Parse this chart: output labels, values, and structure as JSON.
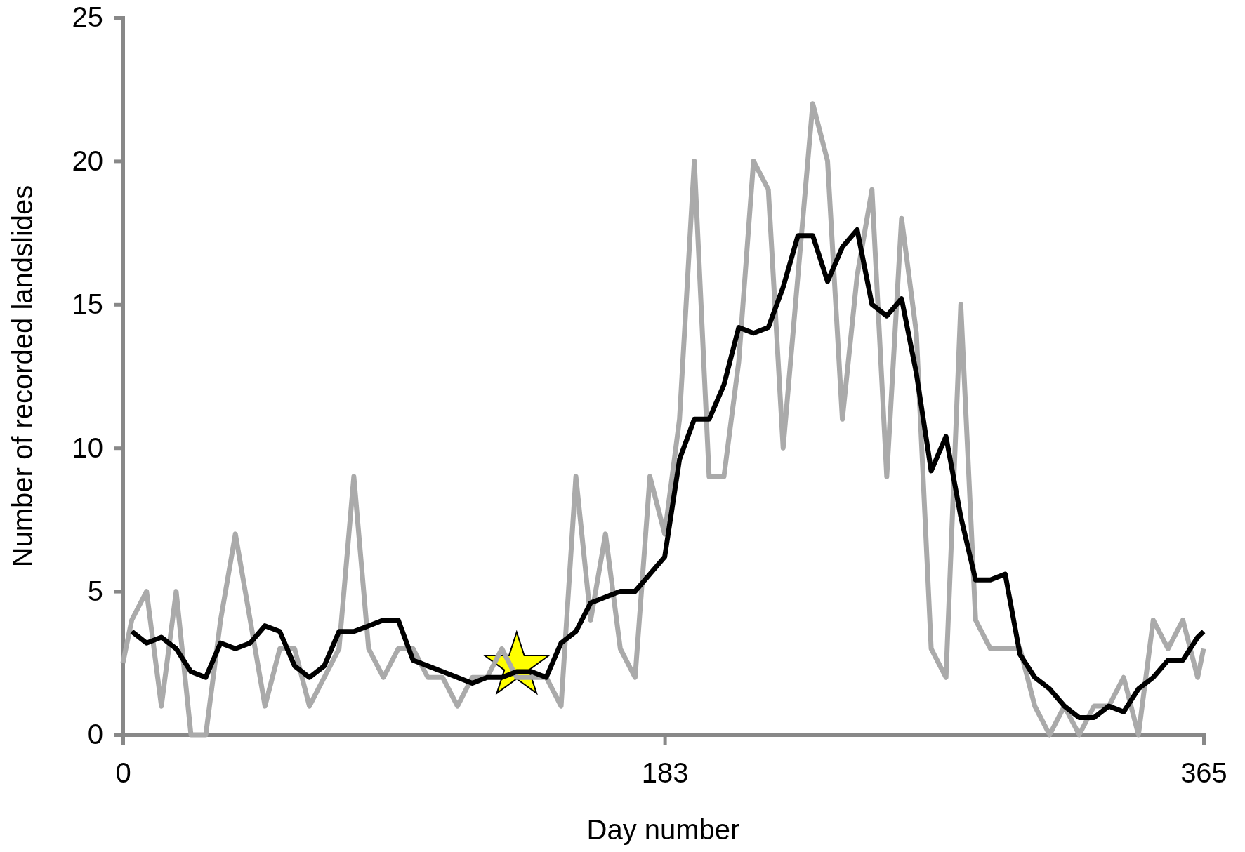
{
  "chart_data": {
    "type": "line",
    "xlabel": "Day number",
    "ylabel": "Number of recorded landslides",
    "xlim": [
      0,
      365
    ],
    "ylim": [
      0,
      25
    ],
    "xticks": [
      0,
      183,
      365
    ],
    "yticks": [
      0,
      5,
      10,
      15,
      20,
      25
    ],
    "grid": false,
    "marker": "none",
    "line_style": "solid",
    "series": [
      {
        "color": "#aaaaaa",
        "x": [
          0,
          3,
          8,
          13,
          18,
          23,
          28,
          33,
          38,
          43,
          48,
          53,
          58,
          63,
          68,
          73,
          78,
          83,
          88,
          93,
          98,
          103,
          108,
          113,
          118,
          123,
          128,
          133,
          138,
          143,
          148,
          153,
          158,
          163,
          168,
          173,
          178,
          183,
          188,
          193,
          198,
          203,
          208,
          213,
          218,
          223,
          228,
          233,
          238,
          243,
          248,
          253,
          258,
          263,
          268,
          273,
          278,
          283,
          288,
          293,
          298,
          303,
          308,
          313,
          318,
          323,
          328,
          333,
          338,
          343,
          348,
          353,
          358,
          363,
          365
        ],
        "values": [
          2.5,
          4,
          5,
          1,
          5,
          0,
          0,
          4,
          7,
          4,
          1,
          3,
          3,
          1,
          2,
          3,
          9,
          3,
          2,
          3,
          3,
          2,
          2,
          1,
          2,
          2,
          3,
          2,
          2,
          2,
          1,
          9,
          4,
          7,
          3,
          2,
          9,
          7,
          11,
          20,
          9,
          9,
          13,
          20,
          19,
          10,
          16,
          22,
          20,
          11,
          16,
          19,
          9,
          18,
          14,
          3,
          2,
          15,
          4,
          3,
          3,
          3,
          1,
          0,
          1,
          0,
          1,
          1,
          2,
          0,
          4,
          3,
          4,
          2,
          3
        ]
      },
      {
        "color": "#000000",
        "x": [
          3,
          8,
          13,
          18,
          23,
          28,
          33,
          38,
          43,
          48,
          53,
          58,
          63,
          68,
          73,
          78,
          83,
          88,
          93,
          98,
          103,
          108,
          113,
          118,
          123,
          128,
          133,
          138,
          143,
          148,
          153,
          158,
          163,
          168,
          173,
          178,
          183,
          188,
          193,
          198,
          203,
          208,
          213,
          218,
          223,
          228,
          233,
          238,
          243,
          248,
          253,
          258,
          263,
          268,
          273,
          278,
          283,
          288,
          293,
          298,
          303,
          308,
          313,
          318,
          323,
          328,
          333,
          338,
          343,
          348,
          353,
          358,
          363,
          365
        ],
        "values": [
          3.6,
          3.2,
          3.4,
          3.0,
          2.2,
          2.0,
          3.2,
          3.0,
          3.2,
          3.8,
          3.6,
          2.4,
          2.0,
          2.4,
          3.6,
          3.6,
          3.8,
          4.0,
          4.0,
          2.6,
          2.4,
          2.2,
          2.0,
          1.8,
          2.0,
          2.0,
          2.2,
          2.2,
          2.0,
          3.2,
          3.6,
          4.6,
          4.8,
          5.0,
          5.0,
          5.6,
          6.2,
          9.6,
          11,
          11,
          12.2,
          14.2,
          14.0,
          14.2,
          15.6,
          17.4,
          17.4,
          15.8,
          17.0,
          17.6,
          15.0,
          14.6,
          15.2,
          12.6,
          9.2,
          10.4,
          7.6,
          5.4,
          5.4,
          5.6,
          2.8,
          2.0,
          1.6,
          1.0,
          0.6,
          0.6,
          1.0,
          0.8,
          1.6,
          2.0,
          2.6,
          2.6,
          3.4,
          3.6
        ]
      },
      {
        "type": "scatter",
        "marker": "star",
        "color": "#ffff00",
        "x": [
          133
        ],
        "values": [
          2.4
        ]
      }
    ]
  }
}
